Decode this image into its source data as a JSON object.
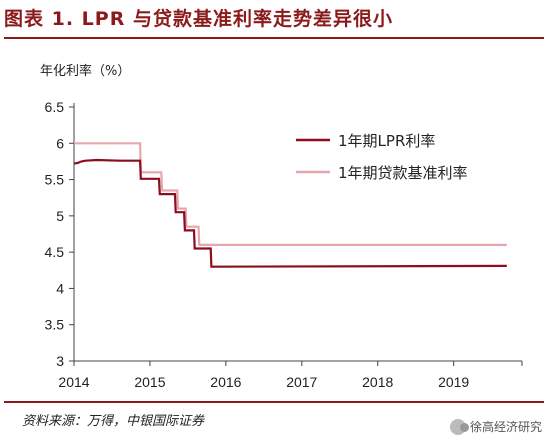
{
  "figure": {
    "title": "图表 1. LPR 与贷款基准利率走势差异很小",
    "source": "资料来源：万得，中银国际证券",
    "watermark": "徐高经济研究"
  },
  "colors": {
    "lpr": "#8b0d1e",
    "benchmark": "#e7a6ad",
    "axis": "#444444",
    "accent": "#8b1a1a"
  },
  "chart_data": {
    "type": "line",
    "ylabel": "年化利率（%）",
    "xlabel": "",
    "xlim": [
      2014,
      2019.9
    ],
    "ylim": [
      3,
      6.5
    ],
    "x_ticks": [
      "2014",
      "2015",
      "2016",
      "2017",
      "2018",
      "2019"
    ],
    "y_ticks": [
      "3",
      "3.5",
      "4",
      "4.5",
      "5",
      "5.5",
      "6",
      "6.5"
    ],
    "legend_position": "top-right",
    "series": [
      {
        "name": "1年期LPR利率",
        "points": [
          [
            2014.0,
            5.72
          ],
          [
            2014.05,
            5.73
          ],
          [
            2014.1,
            5.75
          ],
          [
            2014.15,
            5.76
          ],
          [
            2014.3,
            5.77
          ],
          [
            2014.6,
            5.76
          ],
          [
            2014.87,
            5.76
          ],
          [
            2014.88,
            5.51
          ],
          [
            2015.12,
            5.51
          ],
          [
            2015.13,
            5.3
          ],
          [
            2015.33,
            5.3
          ],
          [
            2015.34,
            5.05
          ],
          [
            2015.45,
            5.05
          ],
          [
            2015.46,
            4.8
          ],
          [
            2015.58,
            4.8
          ],
          [
            2015.59,
            4.55
          ],
          [
            2015.8,
            4.55
          ],
          [
            2015.81,
            4.3
          ],
          [
            2019.7,
            4.31
          ]
        ]
      },
      {
        "name": "1年期贷款基准利率",
        "points": [
          [
            2014.0,
            6.0
          ],
          [
            2014.87,
            6.0
          ],
          [
            2014.88,
            5.6
          ],
          [
            2015.15,
            5.6
          ],
          [
            2015.16,
            5.35
          ],
          [
            2015.36,
            5.35
          ],
          [
            2015.37,
            5.1
          ],
          [
            2015.47,
            5.1
          ],
          [
            2015.48,
            4.85
          ],
          [
            2015.64,
            4.85
          ],
          [
            2015.65,
            4.6
          ],
          [
            2019.7,
            4.6
          ]
        ]
      }
    ]
  }
}
